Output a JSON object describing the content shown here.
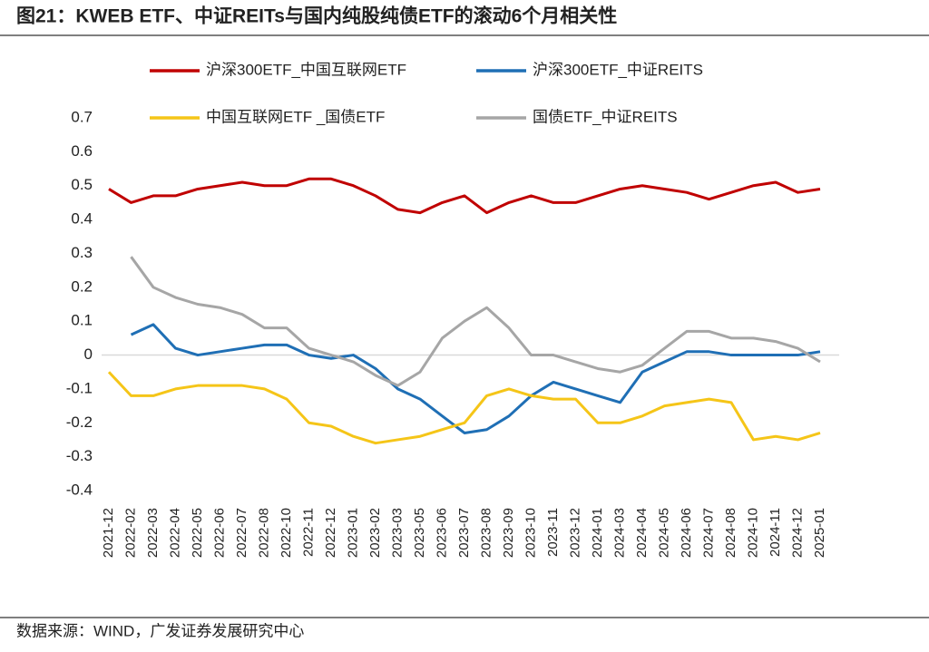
{
  "chart_data": {
    "type": "line",
    "title": "图21：KWEB ETF、中证REITs与国内纯股纯债ETF的滚动6个月相关性",
    "source": "数据来源：WIND，广发证券发展研究中心",
    "categories": [
      "2021-12",
      "2022-02",
      "2022-03",
      "2022-04",
      "2022-05",
      "2022-06",
      "2022-07",
      "2022-08",
      "2022-10",
      "2022-11",
      "2022-12",
      "2023-01",
      "2023-02",
      "2023-03",
      "2023-05",
      "2023-06",
      "2023-07",
      "2023-08",
      "2023-09",
      "2023-10",
      "2023-11",
      "2023-12",
      "2024-01",
      "2024-03",
      "2024-04",
      "2024-05",
      "2024-06",
      "2024-07",
      "2024-08",
      "2024-10",
      "2024-11",
      "2024-12",
      "2025-01"
    ],
    "series": [
      {
        "name": "沪深300ETF_中国互联网ETF",
        "color": "#c00000",
        "values": [
          0.49,
          0.45,
          0.47,
          0.47,
          0.49,
          0.5,
          0.51,
          0.5,
          0.5,
          0.52,
          0.52,
          0.5,
          0.47,
          0.43,
          0.42,
          0.45,
          0.47,
          0.42,
          0.45,
          0.47,
          0.45,
          0.45,
          0.47,
          0.49,
          0.5,
          0.49,
          0.48,
          0.46,
          0.48,
          0.5,
          0.51,
          0.48,
          0.49
        ]
      },
      {
        "name": "沪深300ETF_中证REITS",
        "color": "#1f6fb5",
        "values": [
          null,
          0.06,
          0.09,
          0.02,
          0.0,
          0.01,
          0.02,
          0.03,
          0.03,
          0.0,
          -0.01,
          0.0,
          -0.04,
          -0.1,
          -0.13,
          -0.18,
          -0.23,
          -0.22,
          -0.18,
          -0.12,
          -0.08,
          -0.1,
          -0.12,
          -0.14,
          -0.05,
          -0.02,
          0.01,
          0.01,
          0.0,
          0.0,
          0.0,
          0.0,
          0.01
        ]
      },
      {
        "name": "中国互联网ETF _国债ETF",
        "color": "#f5c518",
        "values": [
          -0.05,
          -0.12,
          -0.12,
          -0.1,
          -0.09,
          -0.09,
          -0.09,
          -0.1,
          -0.13,
          -0.2,
          -0.21,
          -0.24,
          -0.26,
          -0.25,
          -0.24,
          -0.22,
          -0.2,
          -0.12,
          -0.1,
          -0.12,
          -0.13,
          -0.13,
          -0.2,
          -0.2,
          -0.18,
          -0.15,
          -0.14,
          -0.13,
          -0.14,
          -0.25,
          -0.24,
          -0.25,
          -0.23
        ]
      },
      {
        "name": "国债ETF_中证REITS",
        "color": "#a6a6a6",
        "values": [
          null,
          0.29,
          0.2,
          0.17,
          0.15,
          0.14,
          0.12,
          0.08,
          0.08,
          0.02,
          0.0,
          -0.02,
          -0.06,
          -0.09,
          -0.05,
          0.05,
          0.1,
          0.14,
          0.08,
          0.0,
          0.0,
          -0.02,
          -0.04,
          -0.05,
          -0.03,
          0.02,
          0.07,
          0.07,
          0.05,
          0.05,
          0.04,
          0.02,
          -0.02
        ]
      }
    ],
    "ylim": [
      -0.4,
      0.7
    ],
    "yticks": [
      0.7,
      0.6,
      0.5,
      0.4,
      0.3,
      0.2,
      0.1,
      0,
      -0.1,
      -0.2,
      -0.3,
      -0.4
    ]
  }
}
